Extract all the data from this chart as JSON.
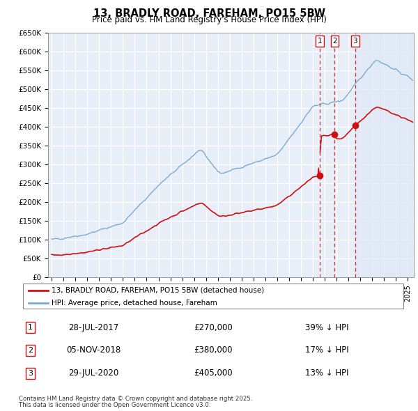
{
  "title": "13, BRADLY ROAD, FAREHAM, PO15 5BW",
  "subtitle": "Price paid vs. HM Land Registry's House Price Index (HPI)",
  "ylim": [
    0,
    650000
  ],
  "yticks": [
    0,
    50000,
    100000,
    150000,
    200000,
    250000,
    300000,
    350000,
    400000,
    450000,
    500000,
    550000,
    600000,
    650000
  ],
  "ytick_labels": [
    "£0",
    "£50K",
    "£100K",
    "£150K",
    "£200K",
    "£250K",
    "£300K",
    "£350K",
    "£400K",
    "£450K",
    "£500K",
    "£550K",
    "£600K",
    "£650K"
  ],
  "xlim_start": 1994.7,
  "xlim_end": 2025.5,
  "plot_bg_color": "#e8eef8",
  "grid_color": "#ffffff",
  "hpi_color": "#7aaad4",
  "price_color": "#cc1111",
  "transaction_color": "#cc1111",
  "shade_color": "#dde8f5",
  "transactions": [
    {
      "num": 1,
      "date_label": "28-JUL-2017",
      "date_x": 2017.57,
      "price": 270000,
      "price_label": "£270,000",
      "pct_label": "39% ↓ HPI"
    },
    {
      "num": 2,
      "date_label": "05-NOV-2018",
      "date_x": 2018.84,
      "price": 380000,
      "price_label": "£380,000",
      "pct_label": "17% ↓ HPI"
    },
    {
      "num": 3,
      "date_label": "29-JUL-2020",
      "date_x": 2020.57,
      "price": 405000,
      "price_label": "£405,000",
      "pct_label": "13% ↓ HPI"
    }
  ],
  "legend_line1": "13, BRADLY ROAD, FAREHAM, PO15 5BW (detached house)",
  "legend_line2": "HPI: Average price, detached house, Fareham",
  "footer1": "Contains HM Land Registry data © Crown copyright and database right 2025.",
  "footer2": "This data is licensed under the Open Government Licence v3.0."
}
